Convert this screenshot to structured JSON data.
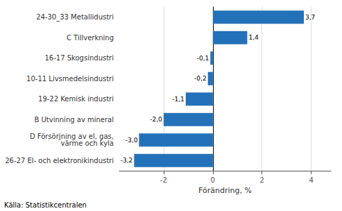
{
  "chart_data": {
    "type": "bar",
    "orientation": "horizontal",
    "categories": [
      "26-27 El- och elektronikindustri",
      "D Försörjning av el, gas,\nvärme och kyla",
      "B Utvinning av mineral",
      "19-22 Kemisk industri",
      "10-11 Livsmedelsindustri",
      "16-17 Skogsindustri",
      "C Tillverkning",
      "24-30_33 Metallidustri"
    ],
    "values": [
      -3.2,
      -3.0,
      -2.0,
      -1.1,
      -0.2,
      -0.1,
      1.4,
      3.7
    ],
    "value_labels": [
      "-3,2",
      "-3,0",
      "-2,0",
      "-1,1",
      "-0,2",
      "-0,1",
      "1,4",
      "3,7"
    ],
    "data_labels": true,
    "color": "#2372B9",
    "xlabel": "Förändring, %",
    "xlim": [
      -3.8,
      4.8
    ],
    "xticks": [
      -2,
      0,
      2,
      4
    ],
    "grid": true,
    "annotations": [
      "Källa: Statistikcentralen"
    ]
  }
}
